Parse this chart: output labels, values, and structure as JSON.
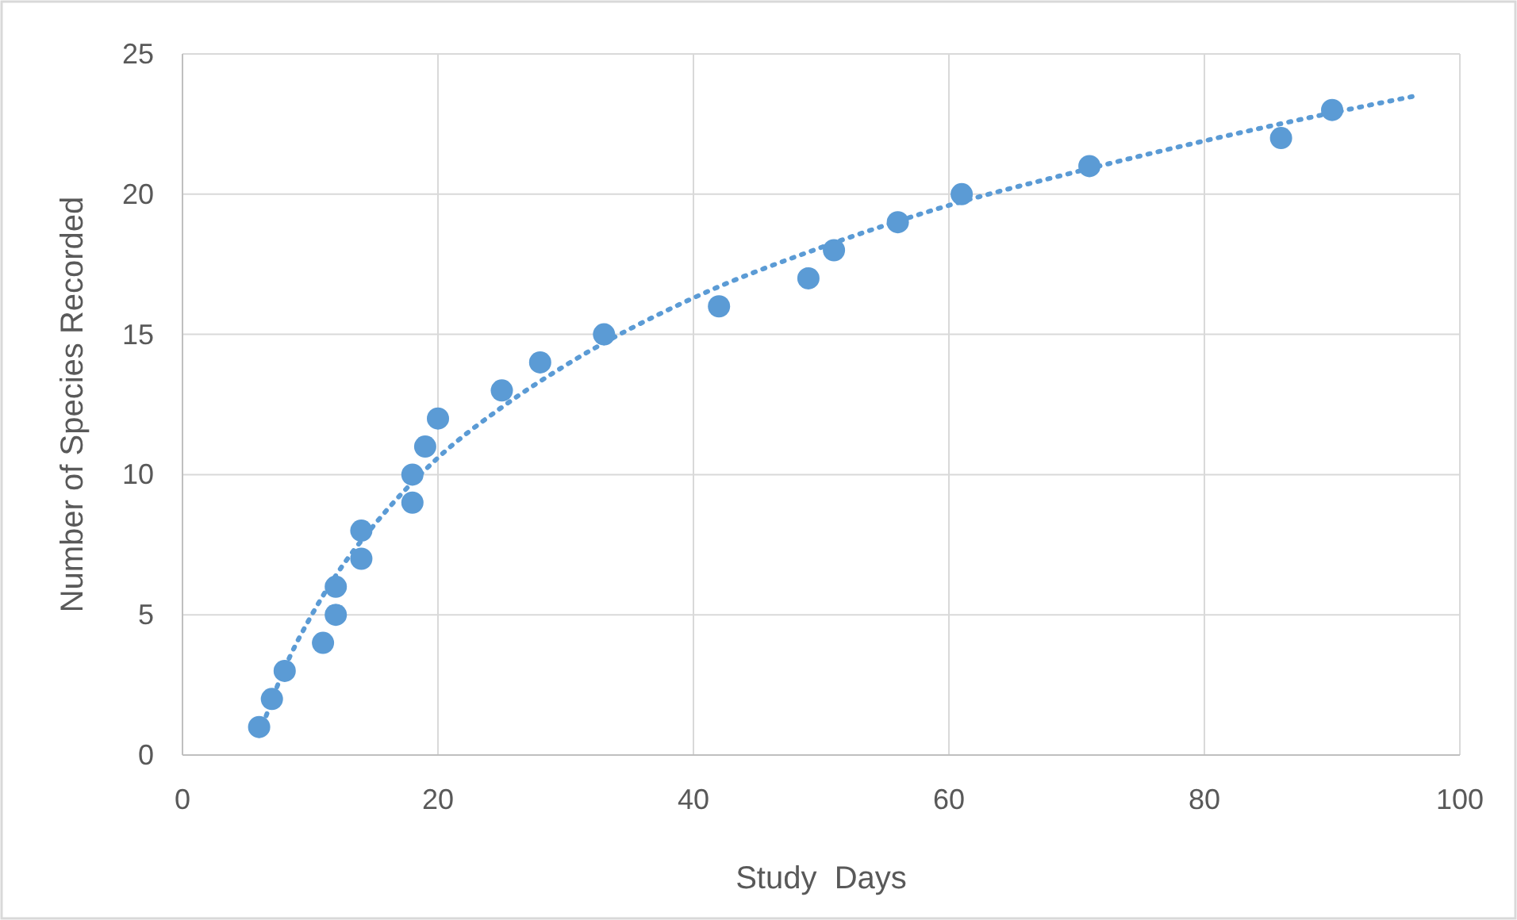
{
  "chart_data": {
    "type": "scatter",
    "xlabel": "Study  Days",
    "ylabel": "Number of Species Recorded",
    "xlim": [
      0,
      100
    ],
    "xticks": [
      0,
      20,
      40,
      60,
      80,
      100
    ],
    "ylim": [
      0,
      25
    ],
    "yticks": [
      0,
      5,
      10,
      15,
      20,
      25
    ],
    "grid": true,
    "series": [
      {
        "color": "#5b9bd5",
        "marker": "circle",
        "x": [
          6,
          7,
          8,
          11,
          12,
          12,
          14,
          14,
          18,
          18,
          19,
          20,
          25,
          28,
          33,
          42,
          49,
          51,
          56,
          61,
          71,
          86,
          90
        ],
        "values": [
          1,
          2,
          3,
          4,
          5,
          6,
          7,
          8,
          9,
          10,
          11,
          12,
          13,
          14,
          15,
          16,
          17,
          18,
          19,
          20,
          21,
          22,
          23
        ]
      },
      {
        "type": "line",
        "color": "#5b9bd5",
        "line_style": "dotted",
        "marker": "none",
        "x": [
          6,
          8,
          10,
          12,
          15,
          20,
          25,
          30,
          40,
          50,
          60,
          70,
          80,
          90,
          96.5
        ],
        "values": [
          0.7,
          3.1,
          4.9,
          6.4,
          8.2,
          10.6,
          12.4,
          13.9,
          16.3,
          18.1,
          19.6,
          20.8,
          21.9,
          22.9,
          23.5
        ]
      }
    ]
  }
}
